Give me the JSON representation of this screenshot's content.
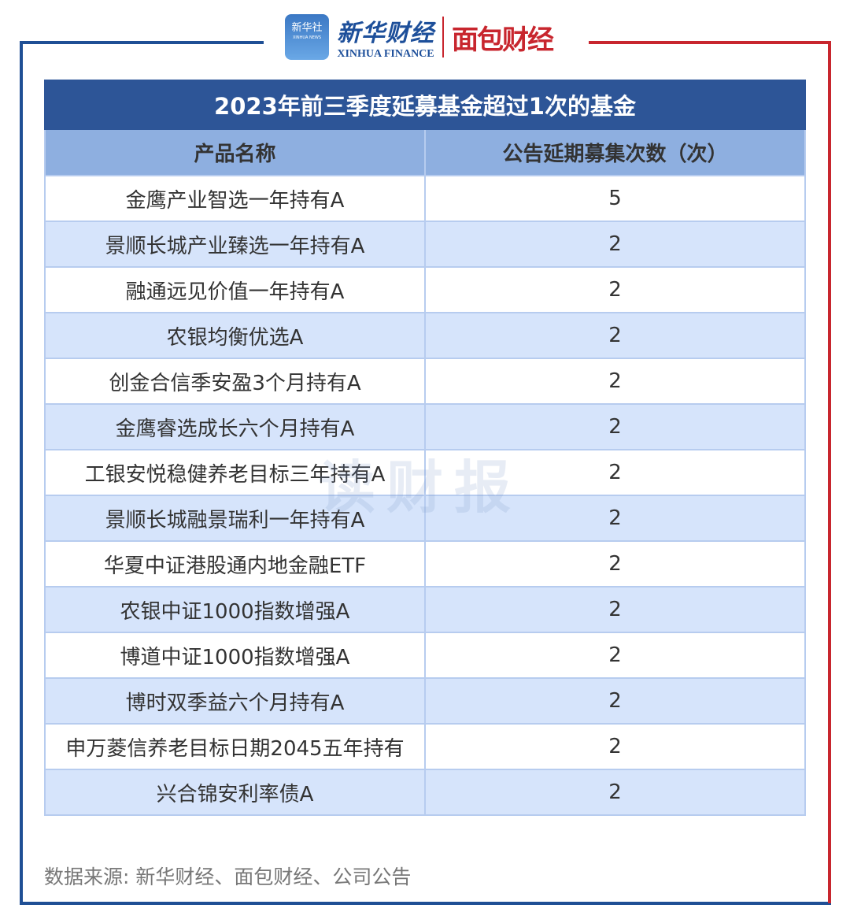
{
  "logos": {
    "xinhua_icon": "新华社",
    "xinhua_icon_en": "XINHUA NEWS",
    "xinhua_cn": "新华财经",
    "xinhua_en": "XINHUA FINANCE",
    "mianbao": "面包财经"
  },
  "colors": {
    "frame_left": "#1f4f95",
    "frame_right": "#c8262e",
    "title_bg": "#2d5597",
    "header_bg": "#8eafe0",
    "alt_row": "#d6e4fb"
  },
  "table": {
    "title": "2023年前三季度延募基金超过1次的基金",
    "headers": [
      "产品名称",
      "公告延期募集次数（次）"
    ],
    "rows": [
      [
        "金鹰产业智选一年持有A",
        "5"
      ],
      [
        "景顺长城产业臻选一年持有A",
        "2"
      ],
      [
        "融通远见价值一年持有A",
        "2"
      ],
      [
        "农银均衡优选A",
        "2"
      ],
      [
        "创金合信季安盈3个月持有A",
        "2"
      ],
      [
        "金鹰睿选成长六个月持有A",
        "2"
      ],
      [
        "工银安悦稳健养老目标三年持有A",
        "2"
      ],
      [
        "景顺长城融景瑞利一年持有A",
        "2"
      ],
      [
        "华夏中证港股通内地金融ETF",
        "2"
      ],
      [
        "农银中证1000指数增强A",
        "2"
      ],
      [
        "博道中证1000指数增强A",
        "2"
      ],
      [
        "博时双季益六个月持有A",
        "2"
      ],
      [
        "申万菱信养老目标日期2045五年持有",
        "2"
      ],
      [
        "兴合锦安利率债A",
        "2"
      ]
    ]
  },
  "watermark": "读财报",
  "source": "数据来源: 新华财经、面包财经、公司公告"
}
